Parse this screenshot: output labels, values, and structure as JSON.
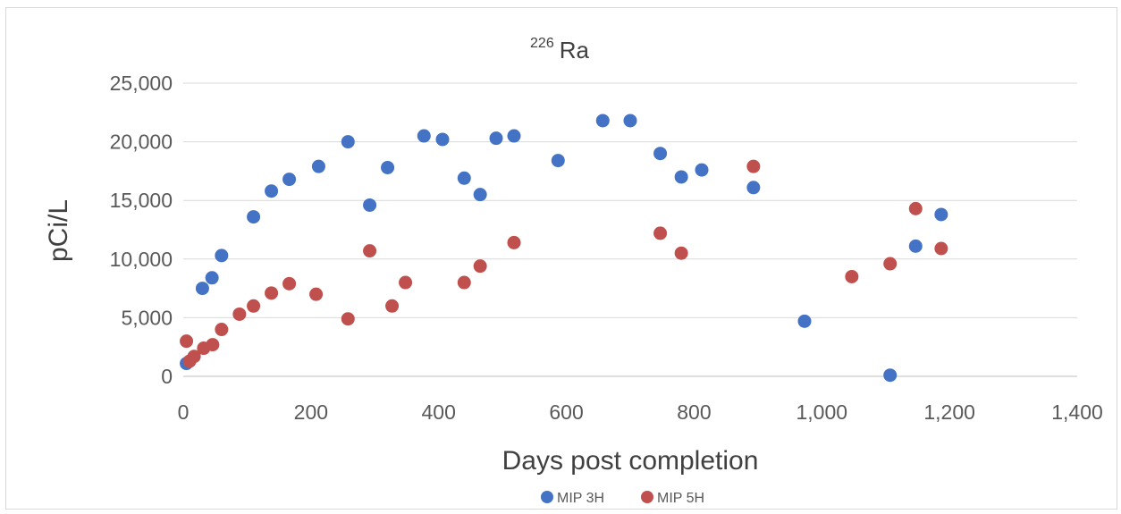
{
  "chart_data": {
    "type": "scatter",
    "title_sup": "226",
    "title_main": "Ra",
    "xlabel": "Days post completion",
    "ylabel": "pCi/L",
    "xlim": [
      0,
      1400
    ],
    "ylim": [
      0,
      25000
    ],
    "x_ticks": [
      0,
      200,
      400,
      600,
      800,
      1000,
      1200,
      1400
    ],
    "x_tick_labels": [
      "0",
      "200",
      "400",
      "600",
      "800",
      "1,000",
      "1,200",
      "1,400"
    ],
    "y_ticks": [
      0,
      5000,
      10000,
      15000,
      20000,
      25000
    ],
    "y_tick_labels": [
      "0",
      "5,000",
      "10,000",
      "15,000",
      "20,000",
      "25,000"
    ],
    "grid": "horizontal",
    "legend_position": "bottom",
    "series": [
      {
        "name": "MIP 3H",
        "color": "#4472c4",
        "points": [
          [
            5,
            1100
          ],
          [
            30,
            7500
          ],
          [
            45,
            8400
          ],
          [
            60,
            10300
          ],
          [
            110,
            13600
          ],
          [
            138,
            15800
          ],
          [
            166,
            16800
          ],
          [
            212,
            17900
          ],
          [
            258,
            20000
          ],
          [
            292,
            14600
          ],
          [
            320,
            17800
          ],
          [
            377,
            20500
          ],
          [
            406,
            20200
          ],
          [
            440,
            16900
          ],
          [
            465,
            15500
          ],
          [
            490,
            20300
          ],
          [
            518,
            20500
          ],
          [
            587,
            18400
          ],
          [
            657,
            21800
          ],
          [
            700,
            21800
          ],
          [
            747,
            19000
          ],
          [
            780,
            17000
          ],
          [
            812,
            17600
          ],
          [
            893,
            16100
          ],
          [
            973,
            4700
          ],
          [
            1107,
            100
          ],
          [
            1147,
            11100
          ],
          [
            1187,
            13800
          ]
        ]
      },
      {
        "name": "MIP 5H",
        "color": "#c0504d",
        "points": [
          [
            5,
            3000
          ],
          [
            10,
            1300
          ],
          [
            17,
            1700
          ],
          [
            32,
            2400
          ],
          [
            46,
            2700
          ],
          [
            60,
            4000
          ],
          [
            88,
            5300
          ],
          [
            110,
            6000
          ],
          [
            138,
            7100
          ],
          [
            166,
            7900
          ],
          [
            208,
            7000
          ],
          [
            258,
            4900
          ],
          [
            292,
            10700
          ],
          [
            327,
            6000
          ],
          [
            348,
            8000
          ],
          [
            440,
            8000
          ],
          [
            465,
            9400
          ],
          [
            518,
            11400
          ],
          [
            747,
            12200
          ],
          [
            780,
            10500
          ],
          [
            893,
            17900
          ],
          [
            1047,
            8500
          ],
          [
            1107,
            9600
          ],
          [
            1147,
            14300
          ],
          [
            1187,
            10900
          ]
        ]
      }
    ]
  }
}
